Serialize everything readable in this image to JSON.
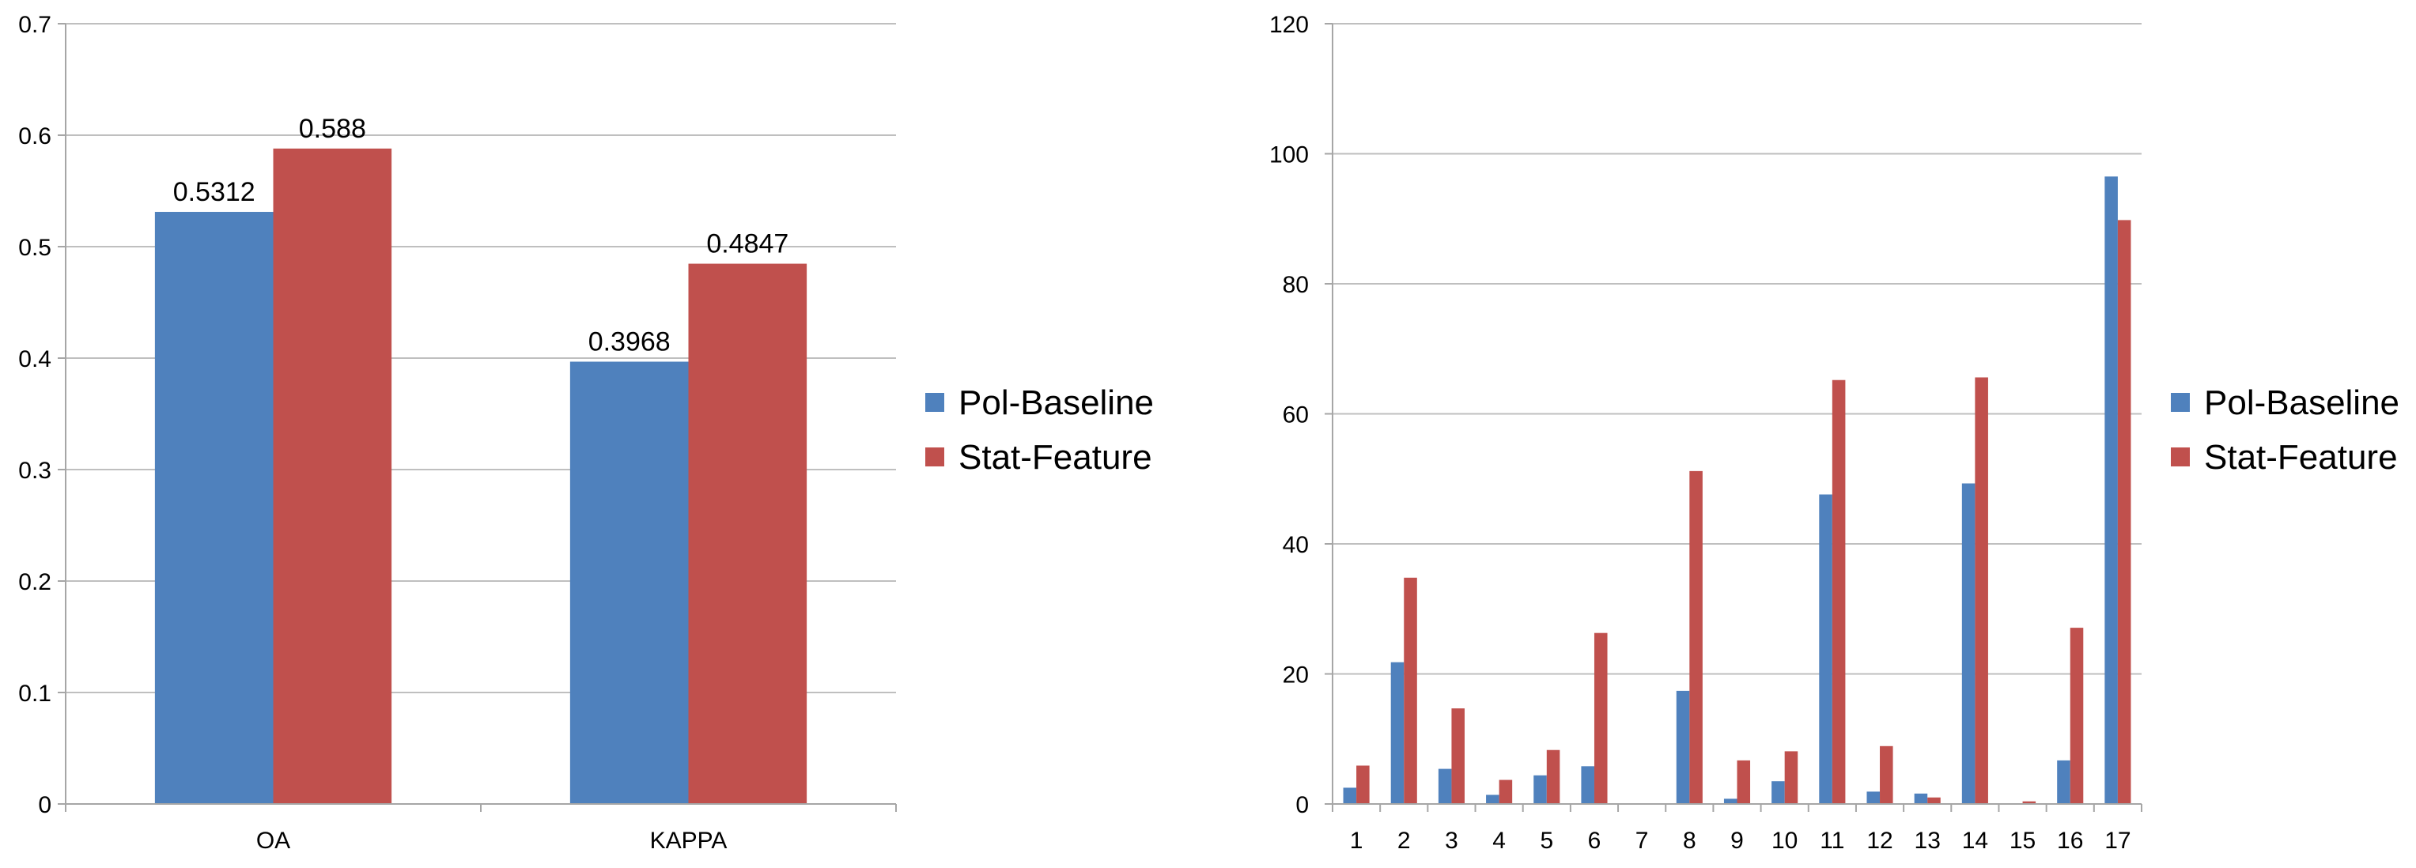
{
  "chart_data": [
    {
      "type": "bar",
      "categories": [
        "OA",
        "KAPPA"
      ],
      "series": [
        {
          "name": "Pol-Baseline",
          "values": [
            0.5312,
            0.3968
          ],
          "labels": [
            "0.5312",
            "0.3968"
          ]
        },
        {
          "name": "Stat-Feature",
          "values": [
            0.588,
            0.4847
          ],
          "labels": [
            "0.588",
            "0.4847"
          ]
        }
      ],
      "ylim": [
        0,
        0.7
      ],
      "yticks": [
        "0",
        "0.1",
        "0.2",
        "0.3",
        "0.4",
        "0.5",
        "0.6",
        "0.7"
      ],
      "grid": true,
      "legend": "right"
    },
    {
      "type": "bar",
      "categories": [
        "1",
        "2",
        "3",
        "4",
        "5",
        "6",
        "7",
        "8",
        "9",
        "10",
        "11",
        "12",
        "13",
        "14",
        "15",
        "16",
        "17"
      ],
      "series": [
        {
          "name": "Pol-Baseline",
          "values": [
            2.5,
            21.8,
            5.4,
            1.4,
            4.4,
            5.8,
            0,
            17.4,
            0.8,
            3.5,
            47.6,
            1.9,
            1.6,
            49.3,
            0.1,
            6.7,
            96.5
          ]
        },
        {
          "name": "Stat-Feature",
          "values": [
            5.9,
            34.8,
            14.7,
            3.7,
            8.3,
            26.3,
            0,
            51.2,
            6.7,
            8.1,
            65.2,
            8.9,
            1.0,
            65.6,
            0.4,
            27.1,
            89.8
          ]
        }
      ],
      "ylim": [
        0,
        120
      ],
      "yticks": [
        "0",
        "20",
        "40",
        "60",
        "80",
        "100",
        "120"
      ],
      "grid": true,
      "legend": "right"
    }
  ],
  "colors": {
    "series1": "#4F81BD",
    "series2": "#C0504D",
    "grid": "#BFBFBF",
    "axis": "#A6A6A6"
  }
}
